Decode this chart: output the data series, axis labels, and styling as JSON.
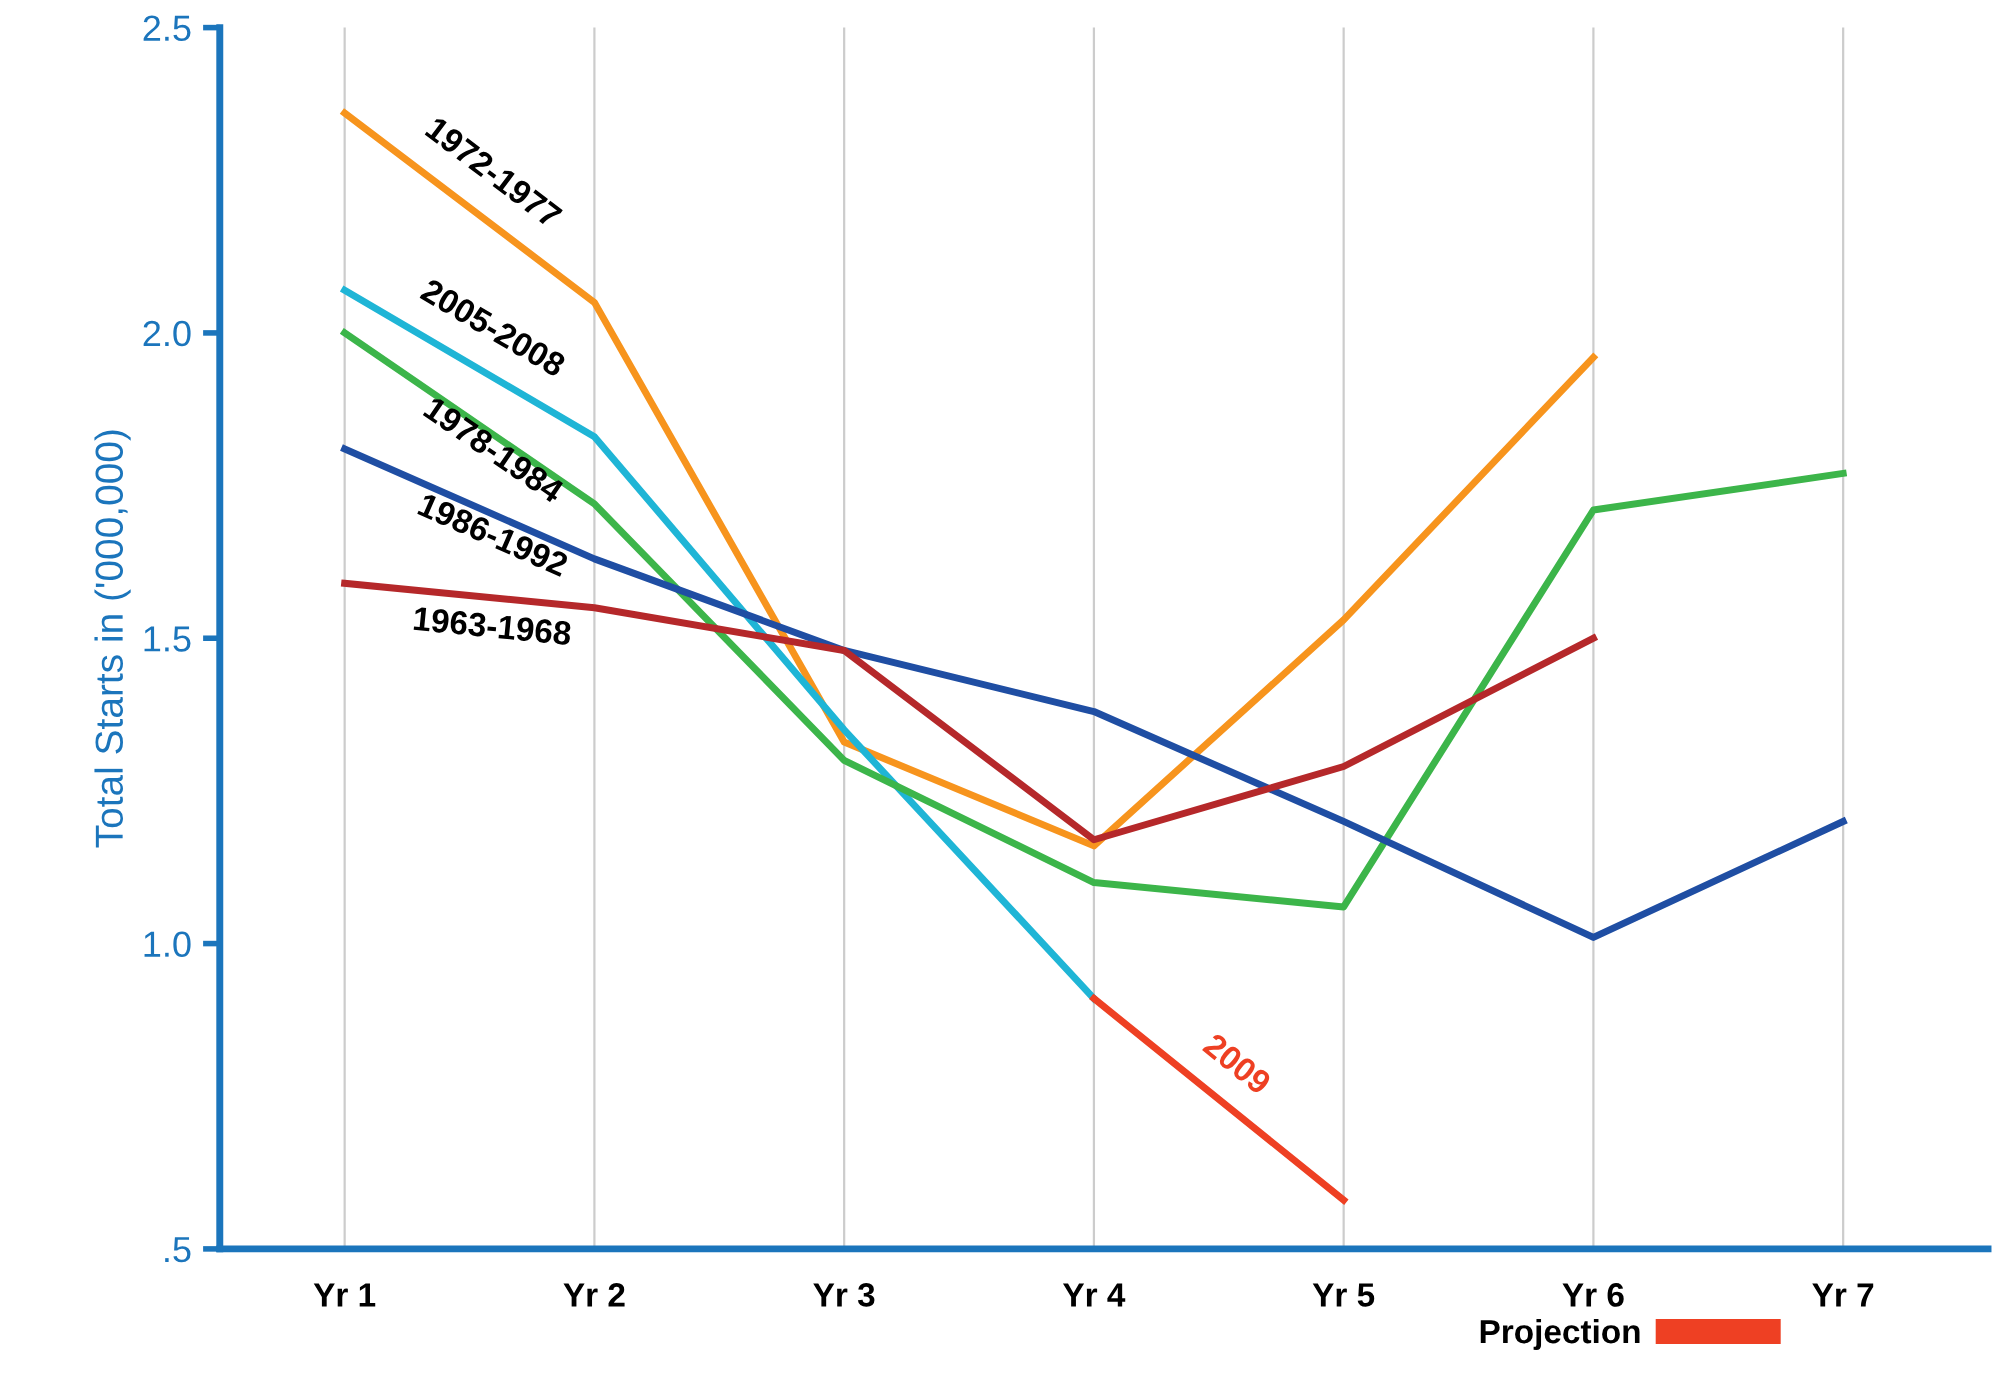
{
  "chart_data": {
    "type": "line",
    "ylabel": "Total Starts in ('000,000)",
    "categories": [
      "Yr 1",
      "Yr 2",
      "Yr 3",
      "Yr 4",
      "Yr 5",
      "Yr 6",
      "Yr 7"
    ],
    "ylim": [
      0.5,
      2.5
    ],
    "yticks": [
      {
        "value": 0.5,
        "label": ".5"
      },
      {
        "value": 1.0,
        "label": "1.0"
      },
      {
        "value": 1.5,
        "label": "1.5"
      },
      {
        "value": 2.0,
        "label": "2.0"
      },
      {
        "value": 2.5,
        "label": "2.5"
      }
    ],
    "series": [
      {
        "name": "1972-1977",
        "color": "#f7941d",
        "values": [
          2.36,
          2.05,
          1.33,
          1.16,
          1.53,
          1.96,
          null
        ]
      },
      {
        "name": "2005-2008",
        "color": "#1fb5d6",
        "values": [
          2.07,
          1.83,
          1.35,
          0.91,
          null,
          null,
          null
        ]
      },
      {
        "name": "1978-1984",
        "color": "#3cb54a",
        "values": [
          2.0,
          1.72,
          1.3,
          1.1,
          1.06,
          1.71,
          1.77
        ]
      },
      {
        "name": "1986-1992",
        "color": "#1f4ea3",
        "values": [
          1.81,
          1.63,
          1.48,
          1.38,
          1.2,
          1.01,
          1.2
        ]
      },
      {
        "name": "1963-1968",
        "color": "#b5282a",
        "values": [
          1.59,
          1.55,
          1.48,
          1.17,
          1.29,
          1.5,
          null
        ]
      },
      {
        "name": "Projection",
        "color": "#ee4023",
        "values": [
          null,
          null,
          null,
          0.91,
          0.58,
          null,
          null
        ]
      }
    ],
    "annotations": [
      "2009"
    ],
    "grid": "x",
    "legend": "bottom right"
  }
}
